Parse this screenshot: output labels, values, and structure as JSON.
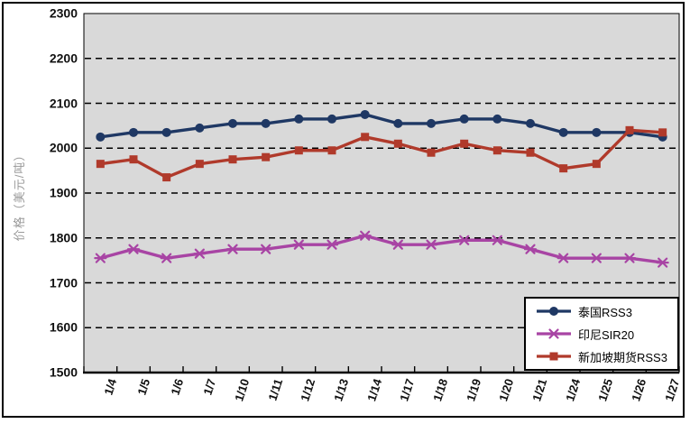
{
  "chart_data": {
    "type": "line",
    "title": "",
    "xlabel": "",
    "ylabel": "价格（美元/吨）",
    "ylim": [
      1500,
      2300
    ],
    "yticks": [
      1500,
      1600,
      1700,
      1800,
      1900,
      2000,
      2100,
      2200,
      2300
    ],
    "grid": "horizontal-dashed",
    "legend_position": "bottom-right",
    "plot_bg": "#D9D9D9",
    "categories": [
      "1/4",
      "1/5",
      "1/6",
      "1/7",
      "1/10",
      "1/11",
      "1/12",
      "1/13",
      "1/14",
      "1/17",
      "1/18",
      "1/19",
      "1/20",
      "1/21",
      "1/24",
      "1/25",
      "1/26",
      "1/27"
    ],
    "series": [
      {
        "name": "泰国RSS3",
        "color": "#1F3864",
        "marker": "circle",
        "values": [
          2025,
          2035,
          2035,
          2045,
          2055,
          2055,
          2065,
          2065,
          2075,
          2055,
          2055,
          2065,
          2065,
          2055,
          2035,
          2035,
          2035,
          2025
        ]
      },
      {
        "name": "印尼SIR20",
        "color": "#A844A4",
        "marker": "x",
        "values": [
          1755,
          1775,
          1755,
          1765,
          1775,
          1775,
          1785,
          1785,
          1805,
          1785,
          1785,
          1795,
          1795,
          1775,
          1755,
          1755,
          1755,
          1745
        ]
      },
      {
        "name": "新加坡期货RSS3",
        "color": "#B03A2B",
        "marker": "square",
        "values": [
          1965,
          1975,
          1935,
          1965,
          1975,
          1980,
          1995,
          1995,
          2025,
          2010,
          1990,
          2010,
          1995,
          1990,
          1955,
          1965,
          2040,
          2035
        ]
      }
    ]
  },
  "colors": {
    "grid": "#000000",
    "axis": "#000000",
    "ylabel_text": "#9a9a9a",
    "tick_text": "#111111",
    "frame_border": "#000000"
  }
}
